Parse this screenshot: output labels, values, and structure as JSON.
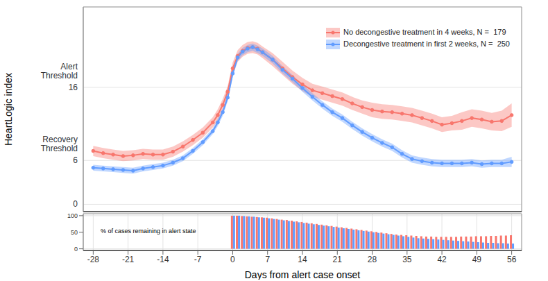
{
  "chart_data": [
    {
      "type": "line",
      "y_label": "HeartLogic index",
      "x": [
        -28,
        -26,
        -24,
        -22,
        -20,
        -18,
        -16,
        -14,
        -12,
        -10,
        -8,
        -6,
        -4,
        -3,
        -2,
        -1,
        0,
        1,
        2,
        3,
        4,
        5,
        6,
        8,
        10,
        12,
        14,
        16,
        18,
        20,
        22,
        24,
        26,
        28,
        30,
        32,
        34,
        36,
        38,
        40,
        42,
        44,
        46,
        48,
        50,
        52,
        54,
        56
      ],
      "series": [
        {
          "name": "No decongestive treatment in 4 weeks, N =  179",
          "color": "#f8766d",
          "marker": "circle",
          "values": [
            7.3,
            7.0,
            6.8,
            6.6,
            6.7,
            6.9,
            6.8,
            6.8,
            7.2,
            7.9,
            8.8,
            9.8,
            11.2,
            12.2,
            13.6,
            15.4,
            18.6,
            20.3,
            21.0,
            21.4,
            21.5,
            21.3,
            20.8,
            19.8,
            18.6,
            17.4,
            16.4,
            15.6,
            15.2,
            14.8,
            14.4,
            13.8,
            13.3,
            12.9,
            12.7,
            12.6,
            12.4,
            12.2,
            11.8,
            11.4,
            10.9,
            11.1,
            11.4,
            11.8,
            11.6,
            11.3,
            11.4,
            12.2
          ],
          "lower": [
            6.6,
            6.3,
            6.1,
            5.9,
            6.0,
            6.2,
            6.1,
            6.1,
            6.5,
            7.2,
            8.1,
            9.1,
            10.5,
            11.4,
            12.8,
            14.6,
            17.8,
            19.5,
            20.2,
            20.6,
            20.7,
            20.5,
            20.0,
            18.9,
            17.7,
            16.5,
            15.5,
            14.7,
            14.3,
            13.9,
            13.5,
            12.9,
            12.4,
            11.9,
            11.7,
            11.6,
            11.4,
            11.2,
            10.8,
            10.4,
            9.9,
            10.1,
            10.2,
            10.6,
            10.4,
            10.1,
            10.0,
            10.6
          ],
          "upper": [
            8.0,
            7.7,
            7.5,
            7.3,
            7.4,
            7.6,
            7.5,
            7.5,
            7.9,
            8.6,
            9.5,
            10.5,
            11.9,
            13.0,
            14.4,
            16.2,
            19.4,
            21.1,
            21.8,
            22.2,
            22.3,
            22.1,
            21.6,
            20.7,
            19.5,
            18.3,
            17.3,
            16.5,
            16.1,
            15.7,
            15.3,
            14.7,
            14.2,
            13.9,
            13.7,
            13.6,
            13.4,
            13.2,
            12.8,
            12.4,
            11.9,
            12.1,
            12.6,
            13.0,
            12.8,
            12.5,
            12.8,
            13.8
          ]
        },
        {
          "name": "Decongestive treatment in first 2 weeks, N =  250",
          "color": "#619cff",
          "marker": "circle",
          "values": [
            5.0,
            4.9,
            4.8,
            4.7,
            4.6,
            4.9,
            5.1,
            5.3,
            5.7,
            6.3,
            7.3,
            8.5,
            10.0,
            11.2,
            12.6,
            14.6,
            17.9,
            20.1,
            20.9,
            21.3,
            21.5,
            21.2,
            20.8,
            19.8,
            18.4,
            17.2,
            15.9,
            14.7,
            13.6,
            12.6,
            11.8,
            10.8,
            9.9,
            9.1,
            8.4,
            7.8,
            6.9,
            6.2,
            5.9,
            5.7,
            5.6,
            5.6,
            5.6,
            5.7,
            5.5,
            5.6,
            5.6,
            5.8
          ],
          "lower": [
            4.6,
            4.5,
            4.4,
            4.3,
            4.2,
            4.5,
            4.7,
            4.9,
            5.3,
            5.9,
            6.9,
            8.1,
            9.6,
            10.7,
            12.1,
            14.1,
            17.4,
            19.6,
            20.4,
            20.8,
            21.0,
            20.7,
            20.3,
            19.3,
            17.9,
            16.7,
            15.4,
            14.2,
            13.1,
            12.1,
            11.3,
            10.3,
            9.4,
            8.6,
            7.9,
            7.3,
            6.4,
            5.7,
            5.4,
            5.2,
            5.1,
            5.1,
            5.1,
            5.2,
            5.0,
            5.1,
            5.1,
            5.1
          ],
          "upper": [
            5.4,
            5.3,
            5.2,
            5.1,
            5.0,
            5.3,
            5.5,
            5.7,
            6.1,
            6.7,
            7.7,
            8.9,
            10.4,
            11.7,
            13.1,
            15.1,
            18.4,
            20.6,
            21.4,
            21.8,
            22.0,
            21.7,
            21.3,
            20.3,
            18.9,
            17.7,
            16.4,
            15.2,
            14.1,
            13.1,
            12.3,
            11.3,
            10.4,
            9.6,
            8.9,
            8.3,
            7.4,
            6.7,
            6.4,
            6.2,
            6.1,
            6.1,
            6.1,
            6.2,
            6.0,
            6.1,
            6.1,
            6.5
          ]
        }
      ],
      "xlim": [
        -30,
        58
      ],
      "xticks": [
        -28,
        -21,
        -14,
        -7,
        0,
        7,
        14,
        21,
        28,
        35,
        42,
        49,
        56
      ],
      "ylim": [
        -1,
        27
      ],
      "yticks": [
        0,
        6,
        16
      ],
      "annotations": [
        {
          "text": "Alert Threshold",
          "y": 16
        },
        {
          "text": "Recovery Threshold",
          "y": 6
        }
      ],
      "grid": true,
      "legend": "top-right",
      "tick_labels": "y"
    },
    {
      "type": "bar",
      "title": "% of cases remaining in alert state",
      "x_label": "Days from alert case onset",
      "x": [
        0,
        1,
        2,
        3,
        4,
        5,
        6,
        7,
        8,
        9,
        10,
        11,
        12,
        13,
        14,
        15,
        16,
        17,
        18,
        19,
        20,
        21,
        22,
        23,
        24,
        25,
        26,
        27,
        28,
        29,
        30,
        31,
        32,
        33,
        34,
        35,
        36,
        37,
        38,
        39,
        40,
        41,
        42,
        43,
        44,
        45,
        46,
        47,
        48,
        49,
        50,
        51,
        52,
        53,
        54,
        55,
        56
      ],
      "series": [
        {
          "color": "#f8766d",
          "values": [
            100,
            100,
            99,
            98,
            97,
            96,
            95,
            94,
            92,
            90,
            88,
            87,
            85,
            83,
            81,
            79,
            77,
            75,
            73,
            71,
            69,
            67,
            65,
            63,
            61,
            59,
            57,
            55,
            53,
            51,
            49,
            47,
            45,
            43,
            42,
            41,
            40,
            39,
            38,
            37,
            37,
            36,
            36,
            36,
            36,
            36,
            37,
            37,
            37,
            38,
            38,
            38,
            39,
            39,
            40,
            40,
            41
          ]
        },
        {
          "color": "#619cff",
          "values": [
            100,
            100,
            99,
            98,
            97,
            95,
            94,
            92,
            90,
            88,
            86,
            84,
            82,
            80,
            78,
            76,
            74,
            72,
            70,
            68,
            66,
            64,
            62,
            60,
            58,
            56,
            54,
            52,
            50,
            48,
            46,
            44,
            42,
            40,
            38,
            36,
            34,
            32,
            31,
            30,
            29,
            28,
            27,
            26,
            25,
            24,
            23,
            22,
            21,
            20,
            19,
            18,
            18,
            17,
            17,
            16,
            16
          ]
        }
      ],
      "xlim": [
        -30,
        58
      ],
      "xticks": [
        -28,
        -21,
        -14,
        -7,
        0,
        7,
        14,
        21,
        28,
        35,
        42,
        49,
        56
      ],
      "ylim": [
        -5,
        106
      ],
      "yticks": [
        0,
        50,
        100
      ],
      "grid": true
    }
  ]
}
